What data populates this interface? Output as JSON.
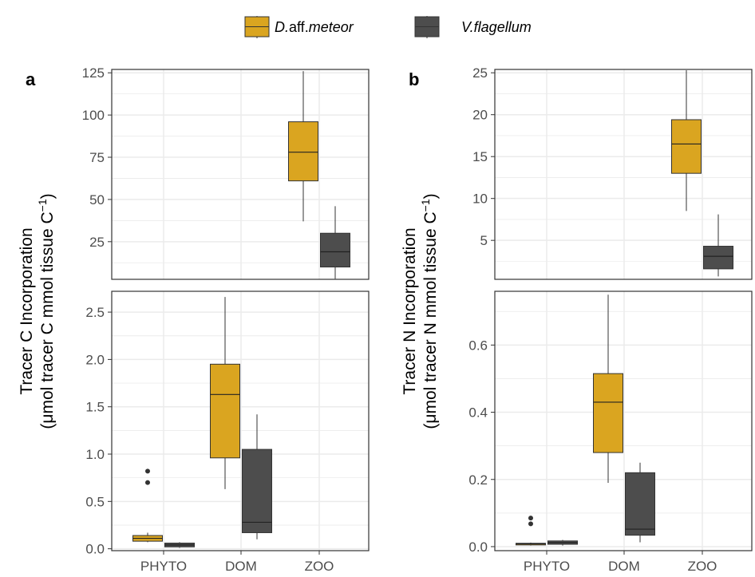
{
  "legend": [
    {
      "name_italic": "D.",
      "name_plain": "aff.",
      "name_italic2": "meteor",
      "color": "#DAA520"
    },
    {
      "name_italic": "V.flagellum",
      "name_plain": "",
      "name_italic2": "",
      "color": "#4D4D4D"
    }
  ],
  "colors": {
    "gold": "#DAA520",
    "gray": "#4D4D4D",
    "grid": "#EBEBEB",
    "outlier": "#333333"
  },
  "chart_data": [
    {
      "type": "box",
      "panel_label": "a",
      "ylabel_line1": "Tracer C Incorporation",
      "ylabel_line2": "(μmol tracer C mmol tissue C",
      "ylabel_sup": "−1",
      "ylabel_close": ")",
      "categories": [
        "PHYTO",
        "DOM",
        "ZOO"
      ],
      "series_names": [
        "D.aff.meteor",
        "V.flagellum"
      ],
      "upper": {
        "ylim": [
          2.7,
          127
        ],
        "ticks": [
          25,
          50,
          75,
          100,
          125
        ],
        "boxes": [
          {
            "cat": 2,
            "series": 0,
            "min": 37,
            "q1": 61,
            "median": 78,
            "q3": 96,
            "max": 126,
            "outliers": []
          },
          {
            "cat": 2,
            "series": 1,
            "min": 3,
            "q1": 10,
            "median": 19,
            "q3": 30,
            "max": 46,
            "outliers": []
          }
        ]
      },
      "lower": {
        "ylim": [
          -0.02,
          2.72
        ],
        "ticks": [
          0.0,
          0.5,
          1.0,
          1.5,
          2.0,
          2.5
        ],
        "tick_labels": [
          "0.0",
          "0.5",
          "1.0",
          "1.5",
          "2.0",
          "2.5"
        ],
        "boxes": [
          {
            "cat": 0,
            "series": 0,
            "min": 0.07,
            "q1": 0.08,
            "median": 0.11,
            "q3": 0.14,
            "max": 0.17,
            "outliers": [
              0.7,
              0.82
            ]
          },
          {
            "cat": 0,
            "series": 1,
            "min": 0.01,
            "q1": 0.02,
            "median": 0.04,
            "q3": 0.06,
            "max": 0.07,
            "outliers": []
          },
          {
            "cat": 1,
            "series": 0,
            "min": 0.63,
            "q1": 0.96,
            "median": 1.63,
            "q3": 1.95,
            "max": 2.66,
            "outliers": []
          },
          {
            "cat": 1,
            "series": 1,
            "min": 0.1,
            "q1": 0.17,
            "median": 0.28,
            "q3": 1.05,
            "max": 1.42,
            "outliers": []
          }
        ]
      }
    },
    {
      "type": "box",
      "panel_label": "b",
      "ylabel_line1": "Tracer N Incorporation",
      "ylabel_line2": "(μmol tracer N mmol tissue C",
      "ylabel_sup": "−1",
      "ylabel_close": ")",
      "categories": [
        "PHYTO",
        "DOM",
        "ZOO"
      ],
      "series_names": [
        "D.aff.meteor",
        "V.flagellum"
      ],
      "upper": {
        "ylim": [
          0.35,
          25.4
        ],
        "ticks": [
          5,
          10,
          15,
          20,
          25
        ],
        "boxes": [
          {
            "cat": 2,
            "series": 0,
            "min": 8.5,
            "q1": 13.0,
            "median": 16.5,
            "q3": 19.4,
            "max": 25.3,
            "outliers": []
          },
          {
            "cat": 2,
            "series": 1,
            "min": 0.7,
            "q1": 1.6,
            "median": 3.1,
            "q3": 4.3,
            "max": 8.1,
            "outliers": []
          }
        ]
      },
      "lower": {
        "ylim": [
          -0.012,
          0.76
        ],
        "ticks": [
          0.0,
          0.2,
          0.4,
          0.6
        ],
        "tick_labels": [
          "0.0",
          "0.2",
          "0.4",
          "0.6"
        ],
        "boxes": [
          {
            "cat": 0,
            "series": 0,
            "min": 0.003,
            "q1": 0.005,
            "median": 0.008,
            "q3": 0.01,
            "max": 0.012,
            "outliers": [
              0.068,
              0.085
            ]
          },
          {
            "cat": 0,
            "series": 1,
            "min": 0.003,
            "q1": 0.007,
            "median": 0.012,
            "q3": 0.017,
            "max": 0.02,
            "outliers": []
          },
          {
            "cat": 1,
            "series": 0,
            "min": 0.19,
            "q1": 0.28,
            "median": 0.43,
            "q3": 0.515,
            "max": 0.75,
            "outliers": []
          },
          {
            "cat": 1,
            "series": 1,
            "min": 0.013,
            "q1": 0.034,
            "median": 0.052,
            "q3": 0.22,
            "max": 0.25,
            "outliers": []
          }
        ]
      }
    }
  ]
}
